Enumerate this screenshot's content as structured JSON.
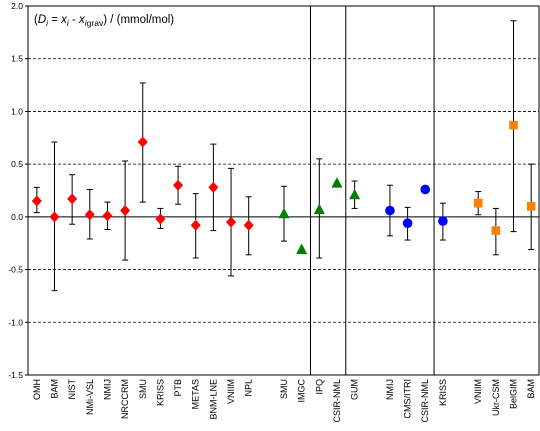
{
  "chart_data": {
    "type": "scatter",
    "title_parts": [
      {
        "t": "(",
        "italic": false,
        "sub": false
      },
      {
        "t": "D",
        "italic": true,
        "sub": false
      },
      {
        "t": "i",
        "italic": true,
        "sub": true
      },
      {
        "t": " = ",
        "italic": false,
        "sub": false
      },
      {
        "t": "x",
        "italic": true,
        "sub": false
      },
      {
        "t": "i",
        "italic": true,
        "sub": true
      },
      {
        "t": " - ",
        "italic": false,
        "sub": false
      },
      {
        "t": "x",
        "italic": true,
        "sub": false
      },
      {
        "t": "i",
        "italic": true,
        "sub": true
      },
      {
        "t": "grav",
        "italic": false,
        "sub": true
      },
      {
        "t": ") / (mmol/mol)",
        "italic": false,
        "sub": false
      }
    ],
    "ylim": [
      -1.5,
      2.0
    ],
    "yticks": [
      "2.0",
      "1.5",
      "1.0",
      "0.5",
      "0.0",
      "-0.5",
      "-1.0",
      "-1.5"
    ],
    "yticks_values": [
      2.0,
      1.5,
      1.0,
      0.5,
      0.0,
      -0.5,
      -1.0,
      -1.5
    ],
    "dashed_grid_values": [
      1.5,
      1.0,
      0.5,
      -0.5,
      -1.0
    ],
    "separators_after_index": [
      14,
      16,
      20
    ],
    "categories": [
      "OMH",
      "BAM",
      "NIST",
      "NMi-VSL",
      "NMIJ",
      "NRCCRM",
      "SMU",
      "KRISS",
      "PTB",
      "METAS",
      "BNM-LNE",
      "VNIIM",
      "NPL",
      "SMU",
      "IMGC",
      "IPQ",
      "CSIR-NML",
      "GUM",
      "NMIJ",
      "CMS/ITRI",
      "CSIR-NML",
      "KRISS",
      "VNIIM",
      "Ukr-CSM",
      "BelGIM",
      "BAM"
    ],
    "slot_positions": [
      0,
      1,
      2,
      3,
      4,
      5,
      6,
      7,
      8,
      9,
      10,
      11,
      12,
      14,
      15,
      16,
      17,
      18,
      20,
      21,
      22,
      23,
      25,
      26,
      27,
      28
    ],
    "series": [
      {
        "marker": "diamond",
        "color": "#ff0000",
        "indices": [
          0,
          1,
          2,
          3,
          4,
          5,
          6,
          7,
          8,
          9,
          10,
          11,
          12
        ],
        "values": [
          0.15,
          0.0,
          0.17,
          0.02,
          0.01,
          0.06,
          0.71,
          -0.02,
          0.3,
          -0.08,
          0.28,
          -0.05,
          -0.08
        ],
        "err_low": [
          0.04,
          -0.7,
          -0.07,
          -0.21,
          -0.12,
          -0.41,
          0.14,
          -0.11,
          0.12,
          -0.39,
          -0.13,
          -0.56,
          -0.36
        ],
        "err_high": [
          0.28,
          0.71,
          0.4,
          0.26,
          0.14,
          0.53,
          1.27,
          0.08,
          0.48,
          0.22,
          0.69,
          0.46,
          0.19
        ]
      },
      {
        "marker": "triangle",
        "color": "#008000",
        "indices": [
          13,
          14,
          15,
          16,
          17
        ],
        "values": [
          0.03,
          -0.31,
          0.07,
          0.32,
          0.21
        ],
        "err_low": [
          -0.23,
          -0.31,
          -0.39,
          0.32,
          0.08
        ],
        "err_high": [
          0.29,
          -0.31,
          0.55,
          0.32,
          0.34
        ]
      },
      {
        "marker": "circle",
        "color": "#0000ff",
        "indices": [
          18,
          19,
          20,
          21
        ],
        "values": [
          0.06,
          -0.06,
          0.26,
          -0.04
        ],
        "err_low": [
          -0.18,
          -0.22,
          0.26,
          -0.22
        ],
        "err_high": [
          0.3,
          0.09,
          0.26,
          0.13
        ]
      },
      {
        "marker": "square",
        "color": "#ff7f00",
        "indices": [
          22,
          23,
          24,
          25
        ],
        "values": [
          0.13,
          -0.13,
          0.87,
          0.1
        ],
        "err_low": [
          0.02,
          -0.36,
          -0.14,
          -0.31
        ],
        "err_high": [
          0.24,
          0.08,
          1.86,
          0.5
        ]
      }
    ]
  }
}
